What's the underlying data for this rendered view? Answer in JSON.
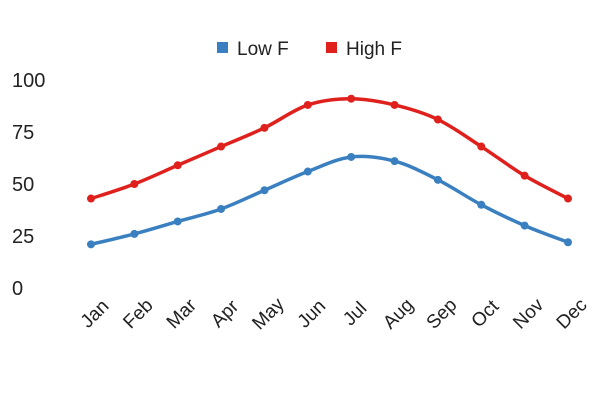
{
  "chart_data": {
    "type": "line",
    "categories": [
      "Jan",
      "Feb",
      "Mar",
      "Apr",
      "May",
      "Jun",
      "Jul",
      "Aug",
      "Sep",
      "Oct",
      "Nov",
      "Dec"
    ],
    "series": [
      {
        "name": "Low F",
        "color": "#3a80c0",
        "values": [
          21,
          26,
          32,
          38,
          47,
          56,
          63,
          61,
          52,
          40,
          30,
          22
        ]
      },
      {
        "name": "High F",
        "color": "#e0201c",
        "values": [
          43,
          50,
          59,
          68,
          77,
          88,
          91,
          88,
          81,
          68,
          54,
          43
        ]
      }
    ],
    "yticks": [
      0,
      25,
      50,
      75,
      100
    ],
    "ylim": [
      0,
      100
    ],
    "title": "",
    "xlabel": "",
    "ylabel": "",
    "grid": false,
    "legend": "top-center",
    "smooth": true
  }
}
